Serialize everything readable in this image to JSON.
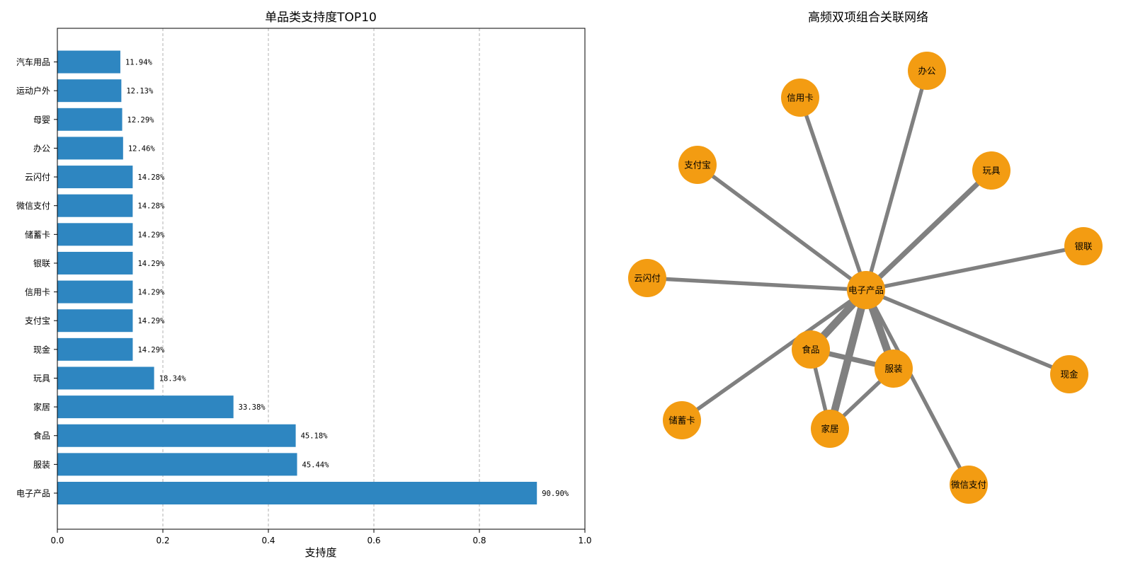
{
  "chart_data": [
    {
      "type": "bar",
      "orientation": "horizontal",
      "title": "单品类支持度TOP10",
      "xlabel": "支持度",
      "ylabel": "",
      "xlim": [
        0,
        1.0
      ],
      "xticks": [
        "0.0",
        "0.2",
        "0.4",
        "0.6",
        "0.8",
        "1.0"
      ],
      "grid": "x-dashed",
      "color": "#2e86c1",
      "categories": [
        "电子产品",
        "服装",
        "食品",
        "家居",
        "玩具",
        "现金",
        "支付宝",
        "信用卡",
        "银联",
        "储蓄卡",
        "微信支付",
        "云闪付",
        "办公",
        "母婴",
        "运动户外",
        "汽车用品"
      ],
      "values": [
        0.909,
        0.4544,
        0.4518,
        0.3338,
        0.1834,
        0.1429,
        0.1429,
        0.1429,
        0.1429,
        0.1429,
        0.1428,
        0.1428,
        0.1246,
        0.1229,
        0.1213,
        0.1194
      ],
      "labels": [
        "90.90%",
        "45.44%",
        "45.18%",
        "33.38%",
        "18.34%",
        "14.29%",
        "14.29%",
        "14.29%",
        "14.29%",
        "14.29%",
        "14.28%",
        "14.28%",
        "12.46%",
        "12.29%",
        "12.13%",
        "11.94%"
      ]
    },
    {
      "type": "network",
      "title": "高频双项组合关联网络",
      "node_color": "#f39c12",
      "edge_color": "#808080",
      "nodes": [
        "电子产品",
        "办公",
        "信用卡",
        "支付宝",
        "玩具",
        "银联",
        "云闪付",
        "食品",
        "服装",
        "现金",
        "储蓄卡",
        "家居",
        "微信支付"
      ],
      "edges": [
        {
          "source": "电子产品",
          "target": "服装",
          "weight": 6
        },
        {
          "source": "电子产品",
          "target": "食品",
          "weight": 6
        },
        {
          "source": "电子产品",
          "target": "家居",
          "weight": 6
        },
        {
          "source": "电子产品",
          "target": "玩具",
          "weight": 4
        },
        {
          "source": "电子产品",
          "target": "办公",
          "weight": 3
        },
        {
          "source": "电子产品",
          "target": "信用卡",
          "weight": 3
        },
        {
          "source": "电子产品",
          "target": "支付宝",
          "weight": 3
        },
        {
          "source": "电子产品",
          "target": "银联",
          "weight": 3
        },
        {
          "source": "电子产品",
          "target": "云闪付",
          "weight": 3
        },
        {
          "source": "电子产品",
          "target": "现金",
          "weight": 3
        },
        {
          "source": "电子产品",
          "target": "储蓄卡",
          "weight": 3
        },
        {
          "source": "电子产品",
          "target": "微信支付",
          "weight": 3
        },
        {
          "source": "食品",
          "target": "服装",
          "weight": 4
        },
        {
          "source": "食品",
          "target": "家居",
          "weight": 3
        },
        {
          "source": "服装",
          "target": "家居",
          "weight": 3
        }
      ]
    }
  ]
}
